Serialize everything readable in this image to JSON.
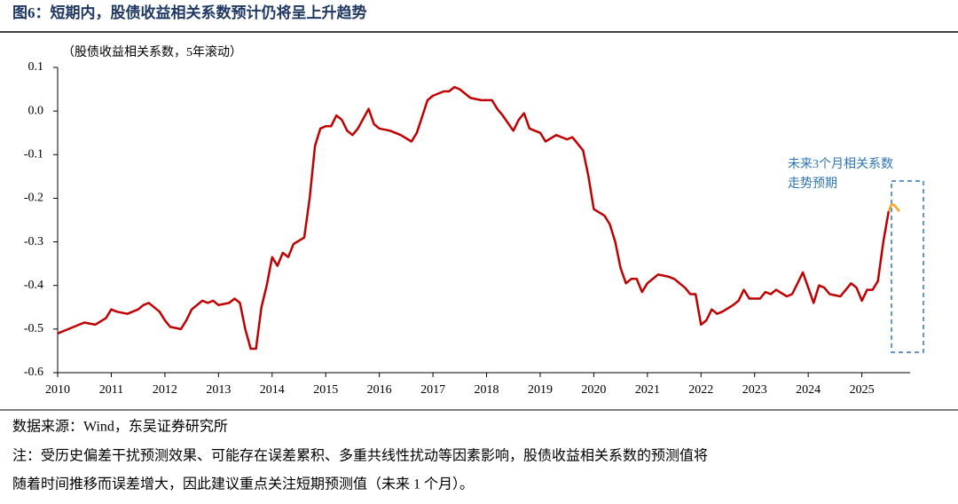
{
  "chart_data": {
    "type": "line",
    "title": "图6：短期内，股债收益相关系数预计仍将呈上升趋势",
    "ylabel": "（股债收益相关系数，5年滚动）",
    "annotation": [
      "未来3个月相关系数",
      "走势预期"
    ],
    "source": "数据来源：Wind，东吴证券研究所",
    "notes": [
      "注：受历史偏差干扰预测效果、可能存在误差累积、多重共线性扰动等因素影响，股债收益相关系数的预测值将",
      "随着时间推移而误差增大，因此建议重点关注短期预测值（未来 1 个月）。"
    ],
    "xlim": [
      2010,
      2025.9
    ],
    "xticks": [
      2010,
      2011,
      2012,
      2013,
      2014,
      2015,
      2016,
      2017,
      2018,
      2019,
      2020,
      2021,
      2022,
      2023,
      2024,
      2025
    ],
    "ylim": [
      -0.6,
      0.1
    ],
    "yticks": [
      0.1,
      {
        "value": 0,
        "label": "0.0"
      },
      -0.1,
      -0.2,
      -0.3,
      -0.4,
      -0.5,
      -0.6
    ],
    "grid": false,
    "series": [
      {
        "color": "#c00000",
        "x": [
          2010.0,
          2010.2,
          2010.4,
          2010.5,
          2010.7,
          2010.9,
          2011.0,
          2011.1,
          2011.3,
          2011.5,
          2011.6,
          2011.7,
          2011.9,
          2012.0,
          2012.1,
          2012.3,
          2012.4,
          2012.5,
          2012.6,
          2012.7,
          2012.8,
          2012.9,
          2013.0,
          2013.2,
          2013.3,
          2013.4,
          2013.5,
          2013.6,
          2013.7,
          2013.8,
          2013.9,
          2014.0,
          2014.1,
          2014.2,
          2014.3,
          2014.4,
          2014.6,
          2014.7,
          2014.8,
          2014.9,
          2015.0,
          2015.1,
          2015.2,
          2015.3,
          2015.4,
          2015.5,
          2015.6,
          2015.8,
          2015.9,
          2016.0,
          2016.2,
          2016.4,
          2016.6,
          2016.7,
          2016.9,
          2017.0,
          2017.2,
          2017.3,
          2017.4,
          2017.5,
          2017.7,
          2017.9,
          2018.1,
          2018.2,
          2018.3,
          2018.5,
          2018.6,
          2018.7,
          2018.8,
          2018.9,
          2019.0,
          2019.1,
          2019.3,
          2019.5,
          2019.6,
          2019.8,
          2019.9,
          2020.0,
          2020.2,
          2020.3,
          2020.4,
          2020.5,
          2020.6,
          2020.7,
          2020.8,
          2020.9,
          2021.0,
          2021.2,
          2021.4,
          2021.5,
          2021.7,
          2021.8,
          2021.9,
          2022.0,
          2022.1,
          2022.2,
          2022.3,
          2022.4,
          2022.6,
          2022.7,
          2022.8,
          2022.9,
          2023.1,
          2023.2,
          2023.3,
          2023.4,
          2023.6,
          2023.7,
          2023.8,
          2023.9,
          2024.0,
          2024.1,
          2024.2,
          2024.3,
          2024.4,
          2024.6,
          2024.7,
          2024.8,
          2024.9,
          2025.0,
          2025.1,
          2025.2,
          2025.3,
          2025.4,
          2025.5
        ],
        "values": [
          -0.51,
          -0.5,
          -0.49,
          -0.485,
          -0.49,
          -0.475,
          -0.455,
          -0.46,
          -0.465,
          -0.455,
          -0.445,
          -0.44,
          -0.46,
          -0.48,
          -0.495,
          -0.5,
          -0.48,
          -0.455,
          -0.445,
          -0.435,
          -0.44,
          -0.435,
          -0.445,
          -0.44,
          -0.43,
          -0.44,
          -0.5,
          -0.545,
          -0.545,
          -0.45,
          -0.4,
          -0.335,
          -0.355,
          -0.325,
          -0.335,
          -0.305,
          -0.29,
          -0.2,
          -0.08,
          -0.04,
          -0.035,
          -0.035,
          -0.01,
          -0.02,
          -0.045,
          -0.055,
          -0.04,
          0.005,
          -0.03,
          -0.04,
          -0.045,
          -0.055,
          -0.07,
          -0.05,
          0.025,
          0.035,
          0.045,
          0.045,
          0.055,
          0.05,
          0.03,
          0.025,
          0.025,
          0.005,
          -0.01,
          -0.045,
          -0.02,
          -0.005,
          -0.04,
          -0.045,
          -0.05,
          -0.07,
          -0.055,
          -0.065,
          -0.06,
          -0.09,
          -0.15,
          -0.225,
          -0.24,
          -0.26,
          -0.3,
          -0.36,
          -0.395,
          -0.385,
          -0.385,
          -0.415,
          -0.395,
          -0.375,
          -0.38,
          -0.385,
          -0.405,
          -0.42,
          -0.42,
          -0.49,
          -0.48,
          -0.455,
          -0.465,
          -0.46,
          -0.445,
          -0.435,
          -0.41,
          -0.43,
          -0.43,
          -0.415,
          -0.42,
          -0.41,
          -0.425,
          -0.42,
          -0.395,
          -0.37,
          -0.405,
          -0.44,
          -0.4,
          -0.405,
          -0.42,
          -0.425,
          -0.41,
          -0.395,
          -0.405,
          -0.435,
          -0.41,
          -0.41,
          -0.39,
          -0.3,
          -0.23
        ]
      },
      {
        "color": "#f5a623",
        "x": [
          2025.5,
          2025.55,
          2025.6,
          2025.7
        ],
        "values": [
          -0.23,
          -0.215,
          -0.215,
          -0.23
        ]
      }
    ]
  }
}
